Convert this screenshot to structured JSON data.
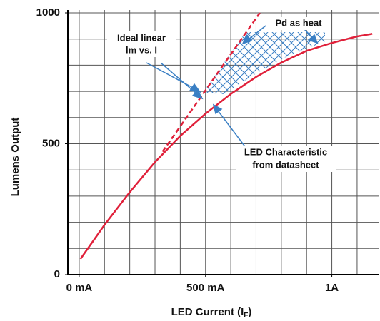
{
  "chart_data": {
    "type": "line",
    "x_label_parts": [
      "LED Current (I",
      "F",
      ")"
    ],
    "y_label": "Lumens Output",
    "xlim": [
      -45,
      1185
    ],
    "ylim": [
      0,
      1000
    ],
    "xticks": [
      {
        "value": 0,
        "label": "0 mA"
      },
      {
        "value": 500,
        "label": "500 mA"
      },
      {
        "value": 1000,
        "label": "1A"
      }
    ],
    "yticks": [
      0,
      500,
      1000
    ],
    "x_grid": [
      0,
      100,
      200,
      300,
      400,
      500,
      600,
      700,
      800,
      900,
      1000,
      1100
    ],
    "y_grid": [
      100,
      200,
      300,
      400,
      500,
      600,
      700,
      800,
      900,
      1000
    ],
    "series": [
      {
        "color": "#e0203a",
        "style": "solid",
        "x": [
          5,
          100,
          200,
          300,
          400,
          500,
          600,
          700,
          800,
          900,
          1000,
          1100,
          1160
        ],
        "values": [
          60,
          190,
          315,
          430,
          530,
          615,
          690,
          755,
          810,
          855,
          885,
          910,
          920
        ]
      },
      {
        "color": "#e0203a",
        "style": "dashed",
        "x": [
          330,
          715
        ],
        "values": [
          470,
          1000
        ]
      }
    ],
    "annotations": [
      {
        "lines": [
          "Ideal linear",
          "lm vs. I"
        ]
      },
      {
        "lines": [
          "Pd as heat"
        ]
      },
      {
        "lines": [
          "LED Characteristic",
          "from datasheet"
        ]
      }
    ]
  }
}
